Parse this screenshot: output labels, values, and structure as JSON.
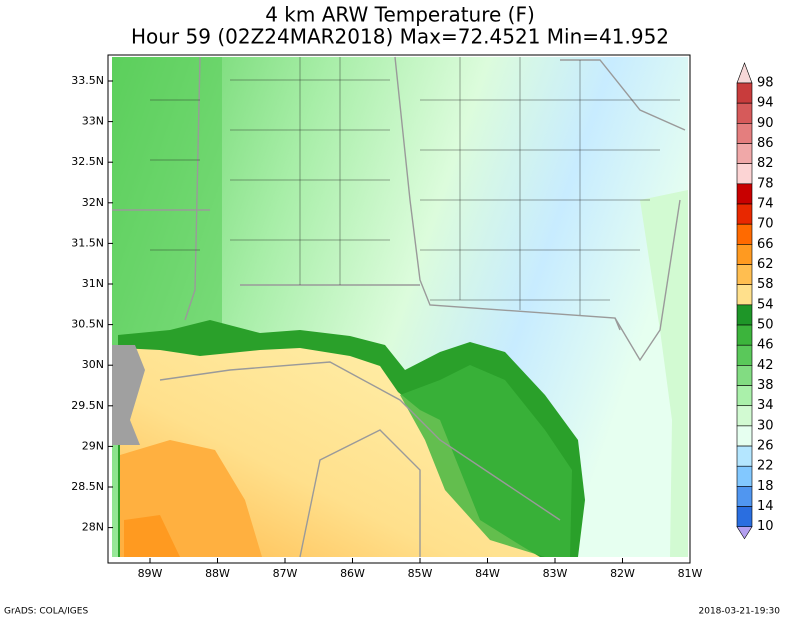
{
  "title": [
    "4 km ARW Temperature (F)",
    "Hour 59 (02Z24MAR2018) Max=72.4521 Min=41.952"
  ],
  "lat_labels": [
    "33.5N",
    "33N",
    "32.5N",
    "32N",
    "31.5N",
    "31N",
    "30.5N",
    "30N",
    "29.5N",
    "29N",
    "28.5N",
    "28N"
  ],
  "lon_labels": [
    "89W",
    "88W",
    "87W",
    "86W",
    "85W",
    "84W",
    "83W",
    "82W",
    "81W"
  ],
  "colorbar": {
    "labels": [
      "98",
      "94",
      "90",
      "86",
      "82",
      "78",
      "74",
      "70",
      "66",
      "62",
      "58",
      "54",
      "50",
      "46",
      "42",
      "38",
      "34",
      "30",
      "26",
      "22",
      "18",
      "14",
      "10"
    ],
    "colors": [
      "#f6d8d8",
      "#c83c3c",
      "#d65a5a",
      "#e47e7e",
      "#f0a8a8",
      "#fcd4d4",
      "#c80000",
      "#e82800",
      "#ff6a00",
      "#ff9a20",
      "#ffbe50",
      "#ffe08c",
      "#1e9628",
      "#3cb43c",
      "#5ac85a",
      "#82dc82",
      "#aaf0aa",
      "#d2fad2",
      "#e6fff0",
      "#b4e6ff",
      "#82c8ff",
      "#5096f0",
      "#2a6ee0",
      "#b4a0f0"
    ]
  },
  "footer": {
    "left": "GrADS: COLA/IGES",
    "right": "2018-03-21-19:30"
  }
}
